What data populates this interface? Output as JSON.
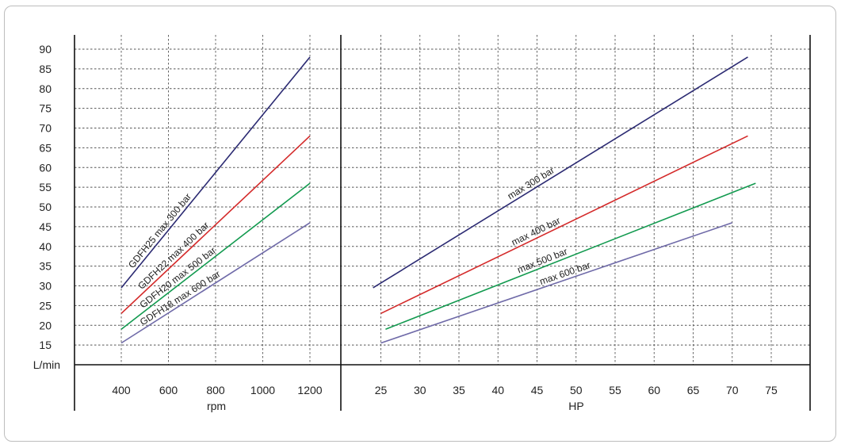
{
  "chart_data": [
    {
      "type": "line",
      "title": "",
      "xlabel": "rpm",
      "ylabel": "L/min",
      "xlim": [
        400,
        1200
      ],
      "ylim": [
        15,
        90
      ],
      "x_ticks": [
        "400",
        "600",
        "800",
        "1000",
        "1200"
      ],
      "y_ticks": [
        "15",
        "20",
        "25",
        "30",
        "35",
        "40",
        "45",
        "50",
        "55",
        "60",
        "65",
        "70",
        "75",
        "80",
        "85",
        "90"
      ],
      "grid": true,
      "series": [
        {
          "name": "GDFH25 max 300 bar",
          "color": "#2b2a72",
          "x": [
            400,
            1200
          ],
          "y": [
            29.5,
            88
          ]
        },
        {
          "name": "GDFH22 max 400 bar",
          "color": "#d42a2a",
          "x": [
            400,
            1200
          ],
          "y": [
            23,
            68
          ]
        },
        {
          "name": "GDFH20 max 500 bar",
          "color": "#129a4f",
          "x": [
            400,
            1200
          ],
          "y": [
            19,
            56
          ]
        },
        {
          "name": "GDFH18 max 600 bar",
          "color": "#6f6aa8",
          "x": [
            400,
            1200
          ],
          "y": [
            15.5,
            46
          ]
        }
      ]
    },
    {
      "type": "line",
      "title": "",
      "xlabel": "HP",
      "ylabel": "L/min",
      "xlim": [
        25,
        75
      ],
      "ylim": [
        15,
        90
      ],
      "x_ticks": [
        "25",
        "30",
        "35",
        "40",
        "45",
        "50",
        "55",
        "60",
        "65",
        "70",
        "75"
      ],
      "grid": true,
      "series": [
        {
          "name": "max 300 bar",
          "color": "#2b2a72",
          "x": [
            24,
            72
          ],
          "y": [
            29.5,
            88
          ]
        },
        {
          "name": "max 400 bar",
          "color": "#d42a2a",
          "x": [
            25,
            72
          ],
          "y": [
            23,
            68
          ]
        },
        {
          "name": "max 500 bar",
          "color": "#129a4f",
          "x": [
            25.6,
            73
          ],
          "y": [
            19,
            56
          ]
        },
        {
          "name": "max 600 bar",
          "color": "#6f6aa8",
          "x": [
            25,
            70
          ],
          "y": [
            15.5,
            46
          ]
        }
      ]
    }
  ]
}
